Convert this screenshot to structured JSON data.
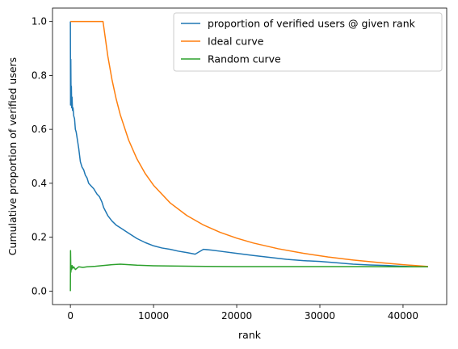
{
  "chart_data": {
    "type": "line",
    "title": "",
    "xlabel": "rank",
    "ylabel": "Cumulative proportion of verified users",
    "xlim": [
      -2150,
      45250
    ],
    "ylim": [
      -0.05,
      1.05
    ],
    "x_ticks": [
      0,
      10000,
      20000,
      30000,
      40000
    ],
    "x_tick_labels": [
      "0",
      "10000",
      "20000",
      "30000",
      "40000"
    ],
    "y_ticks": [
      0.0,
      0.2,
      0.4,
      0.6,
      0.8,
      1.0
    ],
    "y_tick_labels": [
      "0.0",
      "0.2",
      "0.4",
      "0.6",
      "0.8",
      "1.0"
    ],
    "grid": false,
    "legend_position": "top-right",
    "series": [
      {
        "name": "proportion of verified users @ given rank",
        "color": "#1f77b4",
        "x": [
          1,
          20,
          50,
          80,
          120,
          160,
          200,
          260,
          320,
          400,
          500,
          600,
          700,
          800,
          900,
          1000,
          1200,
          1400,
          1600,
          1800,
          2000,
          2200,
          2500,
          2800,
          3000,
          3200,
          3500,
          3800,
          4000,
          4500,
          5000,
          5500,
          6000,
          7000,
          8000,
          9000,
          10000,
          11000,
          12000,
          13000,
          14000,
          15000,
          16000,
          17000,
          18000,
          20000,
          22000,
          24000,
          26000,
          28000,
          30000,
          32000,
          34000,
          36000,
          38000,
          40000,
          42000,
          43000
        ],
        "y": [
          1.0,
          0.69,
          0.86,
          0.73,
          0.76,
          0.68,
          0.72,
          0.67,
          0.68,
          0.65,
          0.64,
          0.6,
          0.59,
          0.57,
          0.55,
          0.53,
          0.48,
          0.46,
          0.45,
          0.43,
          0.42,
          0.4,
          0.39,
          0.38,
          0.37,
          0.36,
          0.35,
          0.33,
          0.31,
          0.28,
          0.26,
          0.245,
          0.235,
          0.215,
          0.195,
          0.18,
          0.168,
          0.16,
          0.155,
          0.148,
          0.143,
          0.137,
          0.155,
          0.152,
          0.148,
          0.14,
          0.132,
          0.125,
          0.118,
          0.113,
          0.11,
          0.105,
          0.1,
          0.097,
          0.095,
          0.092,
          0.09,
          0.09
        ]
      },
      {
        "name": "Ideal curve",
        "color": "#ff7f0e",
        "x": [
          1,
          3925,
          4500,
          5000,
          5500,
          6000,
          7000,
          8000,
          9000,
          10000,
          12000,
          14000,
          16000,
          18000,
          20000,
          22000,
          25000,
          28000,
          31000,
          34000,
          37000,
          40000,
          43000
        ],
        "y": [
          1.0,
          1.0,
          0.8722,
          0.785,
          0.7136,
          0.6542,
          0.5607,
          0.4906,
          0.4361,
          0.3925,
          0.3271,
          0.2804,
          0.2453,
          0.2181,
          0.1963,
          0.1784,
          0.157,
          0.1402,
          0.1266,
          0.1154,
          0.1061,
          0.0981,
          0.0913
        ]
      },
      {
        "name": "Random curve",
        "color": "#2ca02c",
        "x": [
          1,
          20,
          60,
          100,
          150,
          200,
          300,
          400,
          600,
          800,
          1000,
          1500,
          2000,
          3000,
          4000,
          5000,
          6000,
          7000,
          8000,
          9000,
          10000,
          12000,
          15000,
          20000,
          25000,
          30000,
          35000,
          40000,
          43000
        ],
        "y": [
          0.0,
          0.15,
          0.07,
          0.09,
          0.08,
          0.095,
          0.085,
          0.09,
          0.08,
          0.085,
          0.09,
          0.088,
          0.09,
          0.092,
          0.095,
          0.098,
          0.1,
          0.098,
          0.096,
          0.095,
          0.094,
          0.093,
          0.092,
          0.091,
          0.091,
          0.091,
          0.091,
          0.09,
          0.09
        ]
      }
    ]
  }
}
